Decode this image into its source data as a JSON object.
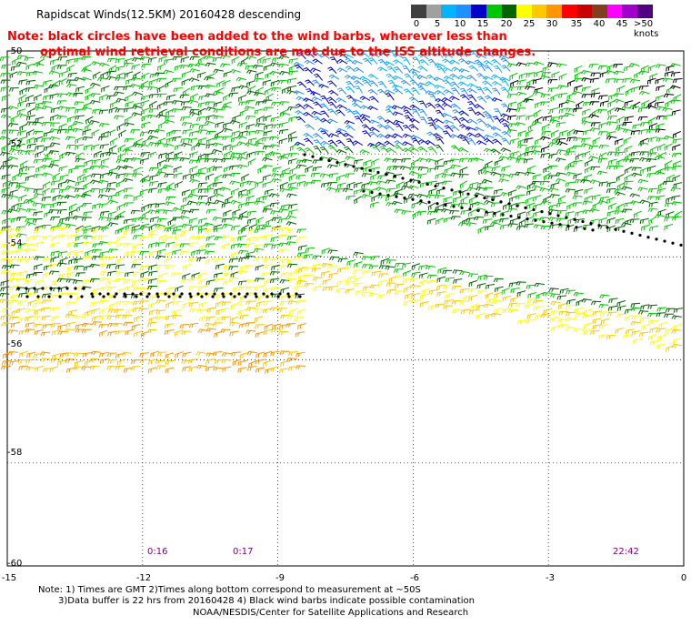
{
  "title": "Rapidscat Winds(12.5KM) 20160428 descending",
  "note": {
    "line1": "Note: black circles have been added to the wind barbs, wherever less than",
    "line2": "optimal wind retrieval conditions are met due to the ISS altitude changes."
  },
  "legend": {
    "colors": [
      "#404040",
      "#a0a0a0",
      "#00b4ff",
      "#1e90ff",
      "#0000c8",
      "#00c800",
      "#006400",
      "#ffff00",
      "#ffc800",
      "#ff9600",
      "#ff0000",
      "#c80000",
      "#804020",
      "#ff00ff",
      "#a000c8",
      "#500080"
    ],
    "tick_labels": [
      "0",
      "5",
      "10",
      "15",
      "20",
      "25",
      "30",
      "35",
      "40",
      "45",
      ">50 knots"
    ]
  },
  "map": {
    "lat_labels": [
      "-50",
      "-52",
      "-54",
      "-56",
      "-58",
      "-60"
    ],
    "lon_labels": [
      "-15",
      "-12",
      "-9",
      "-6",
      "-3",
      "0"
    ],
    "time_labels": [
      "0:16",
      "0:17",
      "22:42"
    ],
    "grid": true
  },
  "footer": {
    "line1": "Note: 1) Times are GMT 2)Times along bottom correspond to measurement at ~50S",
    "line2": "3)Data buffer is 22 hrs from 20160428 4) Black wind barbs indicate possible contamination",
    "line3": "NOAA/NESDIS/Center for Satellite Applications and Research"
  }
}
